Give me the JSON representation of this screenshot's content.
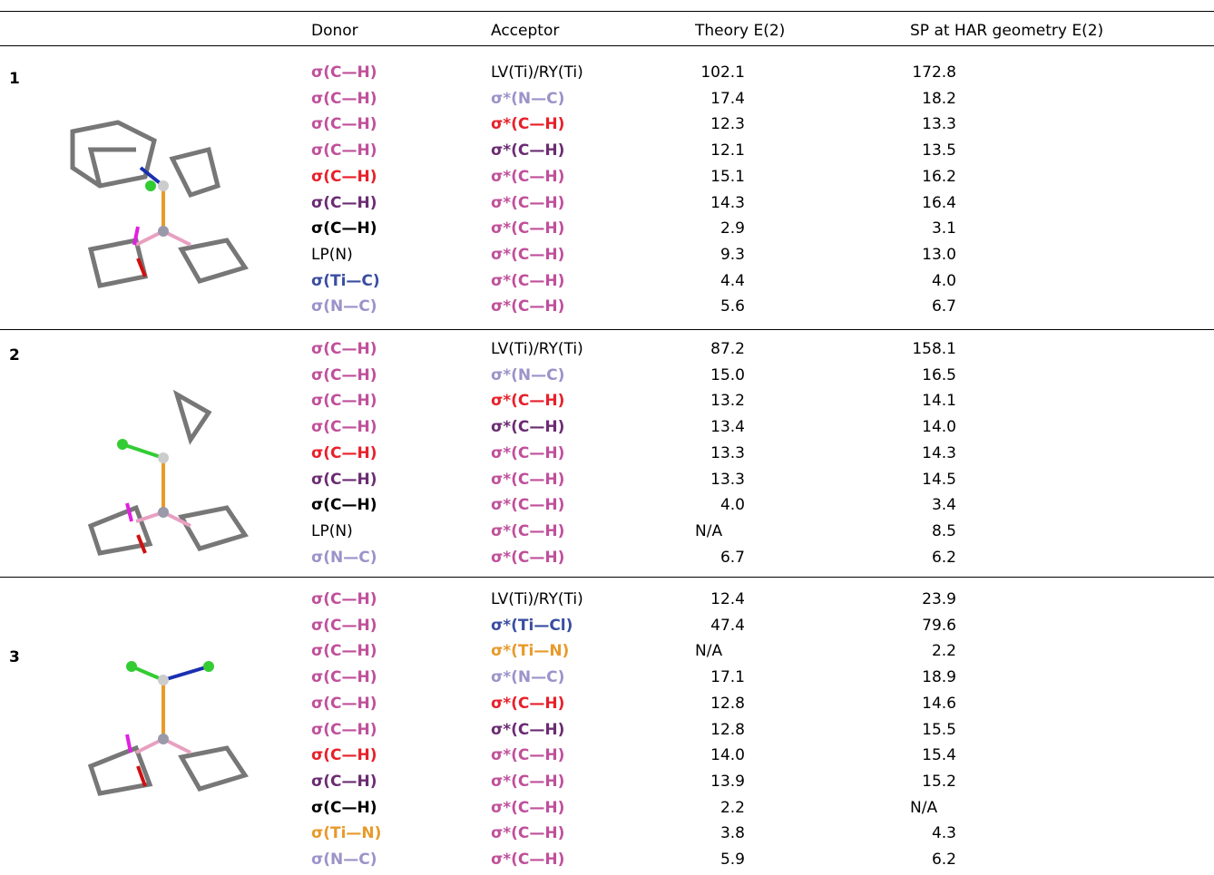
{
  "table": {
    "columns": [
      "Donor",
      "Acceptor",
      "Theory E(2)",
      "SP at HAR geometry E(2)"
    ],
    "groups": [
      {
        "label": "1",
        "rows": [
          {
            "donor": {
              "text": "σ(C—H)",
              "color": "#c0509b"
            },
            "acceptor": {
              "text": "LV(Ti)/RY(Ti)",
              "color": "#000000"
            },
            "theory": "102.1",
            "sp": "172.8"
          },
          {
            "donor": {
              "text": "σ(C—H)",
              "color": "#c0509b"
            },
            "acceptor": {
              "text": "σ*(N—C)",
              "color": "#9b93c9"
            },
            "theory": "17.4",
            "sp": "18.2"
          },
          {
            "donor": {
              "text": "σ(C—H)",
              "color": "#c0509b"
            },
            "acceptor": {
              "text": "σ*(C—H)",
              "color": "#e8202a"
            },
            "theory": "12.3",
            "sp": "13.3"
          },
          {
            "donor": {
              "text": "σ(C—H)",
              "color": "#c0509b"
            },
            "acceptor": {
              "text": "σ*(C—H)",
              "color": "#6b2c72"
            },
            "theory": "12.1",
            "sp": "13.5"
          },
          {
            "donor": {
              "text": "σ(C—H)",
              "color": "#e8202a"
            },
            "acceptor": {
              "text": "σ*(C—H)",
              "color": "#c0509b"
            },
            "theory": "15.1",
            "sp": "16.2"
          },
          {
            "donor": {
              "text": "σ(C—H)",
              "color": "#6b2c72"
            },
            "acceptor": {
              "text": "σ*(C—H)",
              "color": "#c0509b"
            },
            "theory": "14.3",
            "sp": "16.4"
          },
          {
            "donor": {
              "text": "σ(C—H)",
              "color": "#000000"
            },
            "acceptor": {
              "text": "σ*(C—H)",
              "color": "#c0509b"
            },
            "theory": "2.9",
            "sp": "3.1"
          },
          {
            "donor": {
              "text": "LP(N)",
              "color": "#000000"
            },
            "acceptor": {
              "text": "σ*(C—H)",
              "color": "#c0509b"
            },
            "theory": "9.3",
            "sp": "13.0"
          },
          {
            "donor": {
              "text": "σ(Ti—C)",
              "color": "#3a4ea0"
            },
            "acceptor": {
              "text": "σ*(C—H)",
              "color": "#c0509b"
            },
            "theory": "4.4",
            "sp": "4.0"
          },
          {
            "donor": {
              "text": "σ(N—C)",
              "color": "#9b93c9"
            },
            "acceptor": {
              "text": "σ*(C—H)",
              "color": "#c0509b"
            },
            "theory": "5.6",
            "sp": "6.7"
          }
        ]
      },
      {
        "label": "2",
        "rows": [
          {
            "donor": {
              "text": "σ(C—H)",
              "color": "#c0509b"
            },
            "acceptor": {
              "text": "LV(Ti)/RY(Ti)",
              "color": "#000000"
            },
            "theory": "87.2",
            "sp": "158.1"
          },
          {
            "donor": {
              "text": "σ(C—H)",
              "color": "#c0509b"
            },
            "acceptor": {
              "text": "σ*(N—C)",
              "color": "#9b93c9"
            },
            "theory": "15.0",
            "sp": "16.5"
          },
          {
            "donor": {
              "text": "σ(C—H)",
              "color": "#c0509b"
            },
            "acceptor": {
              "text": "σ*(C—H)",
              "color": "#e8202a"
            },
            "theory": "13.2",
            "sp": "14.1"
          },
          {
            "donor": {
              "text": "σ(C—H)",
              "color": "#c0509b"
            },
            "acceptor": {
              "text": "σ*(C—H)",
              "color": "#6b2c72"
            },
            "theory": "13.4",
            "sp": "14.0"
          },
          {
            "donor": {
              "text": "σ(C—H)",
              "color": "#e8202a"
            },
            "acceptor": {
              "text": "σ*(C—H)",
              "color": "#c0509b"
            },
            "theory": "13.3",
            "sp": "14.3"
          },
          {
            "donor": {
              "text": "σ(C—H)",
              "color": "#6b2c72"
            },
            "acceptor": {
              "text": "σ*(C—H)",
              "color": "#c0509b"
            },
            "theory": "13.3",
            "sp": "14.5"
          },
          {
            "donor": {
              "text": "σ(C—H)",
              "color": "#000000"
            },
            "acceptor": {
              "text": "σ*(C—H)",
              "color": "#c0509b"
            },
            "theory": "4.0",
            "sp": "3.4"
          },
          {
            "donor": {
              "text": "LP(N)",
              "color": "#000000"
            },
            "acceptor": {
              "text": "σ*(C—H)",
              "color": "#c0509b"
            },
            "theory": "N/A",
            "sp": "8.5"
          },
          {
            "donor": {
              "text": "σ(N—C)",
              "color": "#9b93c9"
            },
            "acceptor": {
              "text": "σ*(C—H)",
              "color": "#c0509b"
            },
            "theory": "6.7",
            "sp": "6.2"
          }
        ]
      },
      {
        "label": "3",
        "rows": [
          {
            "donor": {
              "text": "σ(C—H)",
              "color": "#c0509b"
            },
            "acceptor": {
              "text": "LV(Ti)/RY(Ti)",
              "color": "#000000"
            },
            "theory": "12.4",
            "sp": "23.9"
          },
          {
            "donor": {
              "text": "σ(C—H)",
              "color": "#c0509b"
            },
            "acceptor": {
              "text": "σ*(Ti—Cl)",
              "color": "#3a4ea0"
            },
            "theory": "47.4",
            "sp": "79.6"
          },
          {
            "donor": {
              "text": "σ(C—H)",
              "color": "#c0509b"
            },
            "acceptor": {
              "text": "σ*(Ti—N)",
              "color": "#e89a2a"
            },
            "theory": "N/A",
            "sp": "2.2"
          },
          {
            "donor": {
              "text": "σ(C—H)",
              "color": "#c0509b"
            },
            "acceptor": {
              "text": "σ*(N—C)",
              "color": "#9b93c9"
            },
            "theory": "17.1",
            "sp": "18.9"
          },
          {
            "donor": {
              "text": "σ(C—H)",
              "color": "#c0509b"
            },
            "acceptor": {
              "text": "σ*(C—H)",
              "color": "#e8202a"
            },
            "theory": "12.8",
            "sp": "14.6"
          },
          {
            "donor": {
              "text": "σ(C—H)",
              "color": "#c0509b"
            },
            "acceptor": {
              "text": "σ*(C—H)",
              "color": "#6b2c72"
            },
            "theory": "12.8",
            "sp": "15.5"
          },
          {
            "donor": {
              "text": "σ(C—H)",
              "color": "#e8202a"
            },
            "acceptor": {
              "text": "σ*(C—H)",
              "color": "#c0509b"
            },
            "theory": "14.0",
            "sp": "15.4"
          },
          {
            "donor": {
              "text": "σ(C—H)",
              "color": "#6b2c72"
            },
            "acceptor": {
              "text": "σ*(C—H)",
              "color": "#c0509b"
            },
            "theory": "13.9",
            "sp": "15.2"
          },
          {
            "donor": {
              "text": "σ(C—H)",
              "color": "#000000"
            },
            "acceptor": {
              "text": "σ*(C—H)",
              "color": "#c0509b"
            },
            "theory": "2.2",
            "sp": "N/A"
          },
          {
            "donor": {
              "text": "σ(Ti—N)",
              "color": "#e89a2a"
            },
            "acceptor": {
              "text": "σ*(C—H)",
              "color": "#c0509b"
            },
            "theory": "3.8",
            "sp": "4.3"
          },
          {
            "donor": {
              "text": "σ(N—C)",
              "color": "#9b93c9"
            },
            "acceptor": {
              "text": "σ*(C—H)",
              "color": "#c0509b"
            },
            "theory": "5.9",
            "sp": "6.2"
          }
        ]
      }
    ]
  }
}
